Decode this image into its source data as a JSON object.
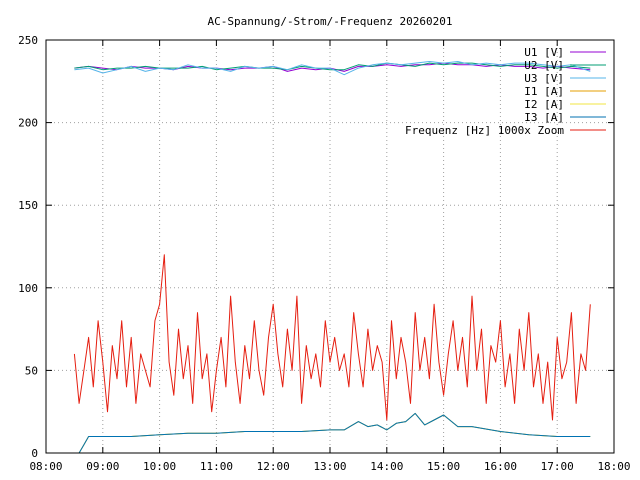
{
  "chart_data": {
    "type": "line",
    "title": "AC-Spannung/-Strom/-Frequenz 20260201",
    "xlabel": "",
    "ylabel": "",
    "xlim": [
      "08:00",
      "18:00"
    ],
    "ylim": [
      0,
      250
    ],
    "x_ticks": [
      "08:00",
      "09:00",
      "10:00",
      "11:00",
      "12:00",
      "13:00",
      "14:00",
      "15:00",
      "16:00",
      "17:00",
      "18:00"
    ],
    "y_ticks": [
      0,
      50,
      100,
      150,
      200,
      250
    ],
    "grid": true,
    "legend_position": "top-right",
    "series": [
      {
        "name": "U1 [V]",
        "color": "#9400d3",
        "x": [
          "08:30",
          "08:45",
          "09:00",
          "09:15",
          "09:30",
          "09:45",
          "10:00",
          "10:15",
          "10:30",
          "10:45",
          "11:00",
          "11:15",
          "11:30",
          "11:45",
          "12:00",
          "12:15",
          "12:30",
          "12:45",
          "13:00",
          "13:15",
          "13:30",
          "13:45",
          "14:00",
          "14:15",
          "14:30",
          "14:45",
          "15:00",
          "15:15",
          "15:30",
          "15:45",
          "16:00",
          "16:15",
          "16:30",
          "16:45",
          "17:00",
          "17:15",
          "17:35"
        ],
        "values": [
          233,
          234,
          233,
          232,
          234,
          233,
          233,
          232,
          234,
          233,
          233,
          232,
          233,
          233,
          234,
          231,
          233,
          232,
          233,
          231,
          234,
          234,
          235,
          234,
          235,
          235,
          236,
          235,
          235,
          234,
          235,
          234,
          234,
          233,
          234,
          233,
          232
        ]
      },
      {
        "name": "U2 [V]",
        "color": "#009e73",
        "x": [
          "08:30",
          "08:45",
          "09:00",
          "09:15",
          "09:30",
          "09:45",
          "10:00",
          "10:15",
          "10:30",
          "10:45",
          "11:00",
          "11:15",
          "11:30",
          "11:45",
          "12:00",
          "12:15",
          "12:30",
          "12:45",
          "13:00",
          "13:15",
          "13:30",
          "13:45",
          "14:00",
          "14:15",
          "14:30",
          "14:45",
          "15:00",
          "15:15",
          "15:30",
          "15:45",
          "16:00",
          "16:15",
          "16:30",
          "16:45",
          "17:00",
          "17:15",
          "17:35"
        ],
        "values": [
          233,
          234,
          232,
          233,
          233,
          234,
          233,
          233,
          233,
          234,
          232,
          233,
          234,
          233,
          233,
          232,
          234,
          233,
          232,
          232,
          235,
          234,
          236,
          235,
          234,
          236,
          235,
          236,
          236,
          235,
          234,
          235,
          235,
          234,
          233,
          234,
          233
        ]
      },
      {
        "name": "U3 [V]",
        "color": "#56b4e9",
        "x": [
          "08:30",
          "08:45",
          "09:00",
          "09:15",
          "09:30",
          "09:45",
          "10:00",
          "10:15",
          "10:30",
          "10:45",
          "11:00",
          "11:15",
          "11:30",
          "11:45",
          "12:00",
          "12:15",
          "12:30",
          "12:45",
          "13:00",
          "13:15",
          "13:30",
          "13:45",
          "14:00",
          "14:15",
          "14:30",
          "14:45",
          "15:00",
          "15:15",
          "15:30",
          "15:45",
          "16:00",
          "16:15",
          "16:30",
          "16:45",
          "17:00",
          "17:15",
          "17:35"
        ],
        "values": [
          232,
          233,
          230,
          232,
          234,
          231,
          233,
          232,
          235,
          233,
          233,
          231,
          234,
          233,
          234,
          232,
          235,
          233,
          233,
          229,
          233,
          235,
          236,
          235,
          236,
          237,
          236,
          237,
          235,
          236,
          235,
          236,
          236,
          235,
          234,
          235,
          231
        ]
      },
      {
        "name": "I1 [A]",
        "color": "#e69f00",
        "x": [
          "08:35",
          "08:40",
          "08:45",
          "09:00",
          "09:30",
          "10:00",
          "10:30",
          "11:00",
          "11:30",
          "12:00",
          "12:30",
          "13:00",
          "13:15",
          "13:30",
          "13:40",
          "13:50",
          "14:00",
          "14:10",
          "14:20",
          "14:30",
          "14:40",
          "14:50",
          "15:00",
          "15:15",
          "15:30",
          "16:00",
          "16:30",
          "17:00",
          "17:30",
          "17:35"
        ],
        "values": [
          0,
          5,
          10,
          10,
          10,
          11,
          12,
          12,
          13,
          13,
          13,
          14,
          14,
          19,
          16,
          17,
          14,
          18,
          19,
          24,
          17,
          20,
          23,
          16,
          16,
          13,
          11,
          10,
          10,
          10
        ]
      },
      {
        "name": "I2 [A]",
        "color": "#f0e442",
        "x": [
          "08:35",
          "08:40",
          "08:45",
          "09:00",
          "09:30",
          "10:00",
          "10:30",
          "11:00",
          "11:30",
          "12:00",
          "12:30",
          "13:00",
          "13:15",
          "13:30",
          "13:40",
          "13:50",
          "14:00",
          "14:10",
          "14:20",
          "14:30",
          "14:40",
          "14:50",
          "15:00",
          "15:15",
          "15:30",
          "16:00",
          "16:30",
          "17:00",
          "17:30",
          "17:35"
        ],
        "values": [
          0,
          5,
          10,
          10,
          10,
          11,
          12,
          12,
          13,
          13,
          13,
          14,
          14,
          19,
          16,
          17,
          14,
          18,
          19,
          24,
          17,
          20,
          23,
          16,
          16,
          13,
          11,
          10,
          10,
          10
        ]
      },
      {
        "name": "I3 [A]",
        "color": "#0072b2",
        "x": [
          "08:35",
          "08:40",
          "08:45",
          "09:00",
          "09:30",
          "10:00",
          "10:30",
          "11:00",
          "11:30",
          "12:00",
          "12:30",
          "13:00",
          "13:15",
          "13:30",
          "13:40",
          "13:50",
          "14:00",
          "14:10",
          "14:20",
          "14:30",
          "14:40",
          "14:50",
          "15:00",
          "15:15",
          "15:30",
          "16:00",
          "16:30",
          "17:00",
          "17:30",
          "17:35"
        ],
        "values": [
          0,
          5,
          10,
          10,
          10,
          11,
          12,
          12,
          13,
          13,
          13,
          14,
          14,
          19,
          16,
          17,
          14,
          18,
          19,
          24,
          17,
          20,
          23,
          16,
          16,
          13,
          11,
          10,
          10,
          10
        ]
      },
      {
        "name": "Frequenz [Hz] 1000x Zoom",
        "color": "#e51e10",
        "x": [
          "08:30",
          "08:35",
          "08:40",
          "08:45",
          "08:50",
          "08:55",
          "09:00",
          "09:05",
          "09:10",
          "09:15",
          "09:20",
          "09:25",
          "09:30",
          "09:35",
          "09:40",
          "09:45",
          "09:50",
          "09:55",
          "10:00",
          "10:05",
          "10:10",
          "10:15",
          "10:20",
          "10:25",
          "10:30",
          "10:35",
          "10:40",
          "10:45",
          "10:50",
          "10:55",
          "11:00",
          "11:05",
          "11:10",
          "11:15",
          "11:20",
          "11:25",
          "11:30",
          "11:35",
          "11:40",
          "11:45",
          "11:50",
          "11:55",
          "12:00",
          "12:05",
          "12:10",
          "12:15",
          "12:20",
          "12:25",
          "12:30",
          "12:35",
          "12:40",
          "12:45",
          "12:50",
          "12:55",
          "13:00",
          "13:05",
          "13:10",
          "13:15",
          "13:20",
          "13:25",
          "13:30",
          "13:35",
          "13:40",
          "13:45",
          "13:50",
          "13:55",
          "14:00",
          "14:05",
          "14:10",
          "14:15",
          "14:20",
          "14:25",
          "14:30",
          "14:35",
          "14:40",
          "14:45",
          "14:50",
          "14:55",
          "15:00",
          "15:05",
          "15:10",
          "15:15",
          "15:20",
          "15:25",
          "15:30",
          "15:35",
          "15:40",
          "15:45",
          "15:50",
          "15:55",
          "16:00",
          "16:05",
          "16:10",
          "16:15",
          "16:20",
          "16:25",
          "16:30",
          "16:35",
          "16:40",
          "16:45",
          "16:50",
          "16:55",
          "17:00",
          "17:05",
          "17:10",
          "17:15",
          "17:20",
          "17:25",
          "17:30",
          "17:35"
        ],
        "values": [
          60,
          30,
          50,
          70,
          40,
          80,
          55,
          25,
          65,
          45,
          80,
          40,
          70,
          30,
          60,
          50,
          40,
          80,
          90,
          120,
          55,
          35,
          75,
          45,
          65,
          30,
          85,
          45,
          60,
          25,
          50,
          70,
          40,
          95,
          55,
          30,
          65,
          45,
          80,
          50,
          35,
          70,
          90,
          60,
          40,
          75,
          50,
          95,
          30,
          65,
          45,
          60,
          40,
          80,
          55,
          70,
          50,
          60,
          40,
          85,
          60,
          40,
          75,
          50,
          65,
          55,
          20,
          80,
          45,
          70,
          55,
          30,
          85,
          50,
          70,
          45,
          90,
          55,
          35,
          60,
          80,
          50,
          70,
          40,
          95,
          50,
          75,
          30,
          65,
          55,
          80,
          40,
          60,
          30,
          75,
          50,
          85,
          40,
          60,
          30,
          55,
          20,
          70,
          45,
          55,
          85,
          30,
          60,
          50,
          90
        ]
      }
    ]
  }
}
